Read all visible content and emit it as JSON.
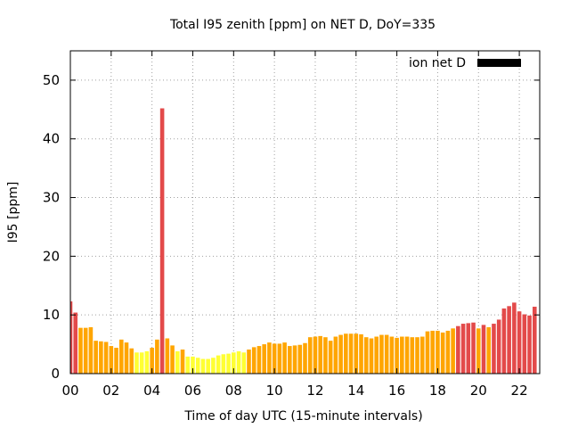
{
  "chart_data": {
    "type": "bar",
    "title": "Total I95 zenith [ppm] on NET D, DoY=335",
    "xlabel": "Time of day UTC (15-minute intervals)",
    "ylabel": "I95 [ppm]",
    "xlim_hours": [
      0,
      23
    ],
    "ylim": [
      0,
      55
    ],
    "y_ticks": [
      0,
      10,
      20,
      30,
      40,
      50
    ],
    "x_tick_hours": [
      0,
      2,
      4,
      6,
      8,
      10,
      12,
      14,
      16,
      18,
      20,
      22
    ],
    "x_tick_labels": [
      "00",
      "02",
      "04",
      "06",
      "08",
      "10",
      "12",
      "14",
      "16",
      "18",
      "20",
      "22"
    ],
    "grid": true,
    "legend": {
      "label": "ion net D",
      "color": "#000000",
      "placement": "top-right"
    },
    "interval_hours": 0.25,
    "color_thresholds": {
      "yellow_below": 4,
      "red_from": 8
    },
    "colors": {
      "yellow": "#ffff33",
      "orange": "#ffa500",
      "red": "#e34a4a"
    },
    "values": [
      12.3,
      10.4,
      7.8,
      7.8,
      7.9,
      5.6,
      5.5,
      5.4,
      4.7,
      4.4,
      5.8,
      5.3,
      4.3,
      3.6,
      3.6,
      3.8,
      4.4,
      5.8,
      45.2,
      6.0,
      4.8,
      3.8,
      4.1,
      2.9,
      2.9,
      2.7,
      2.5,
      2.5,
      2.7,
      3.1,
      3.3,
      3.4,
      3.6,
      3.8,
      3.6,
      4.1,
      4.5,
      4.7,
      5.0,
      5.3,
      5.1,
      5.1,
      5.3,
      4.7,
      4.8,
      4.9,
      5.2,
      6.2,
      6.3,
      6.4,
      6.2,
      5.6,
      6.3,
      6.6,
      6.8,
      6.8,
      6.8,
      6.7,
      6.2,
      6.0,
      6.3,
      6.6,
      6.6,
      6.3,
      6.1,
      6.3,
      6.3,
      6.2,
      6.2,
      6.3,
      7.2,
      7.3,
      7.3,
      7.0,
      7.3,
      7.7,
      8.1,
      8.5,
      8.6,
      8.7,
      7.7,
      8.3,
      7.9,
      8.5,
      9.2,
      11.1,
      11.5,
      12.1,
      10.6,
      10.1,
      9.9,
      11.4
    ]
  }
}
